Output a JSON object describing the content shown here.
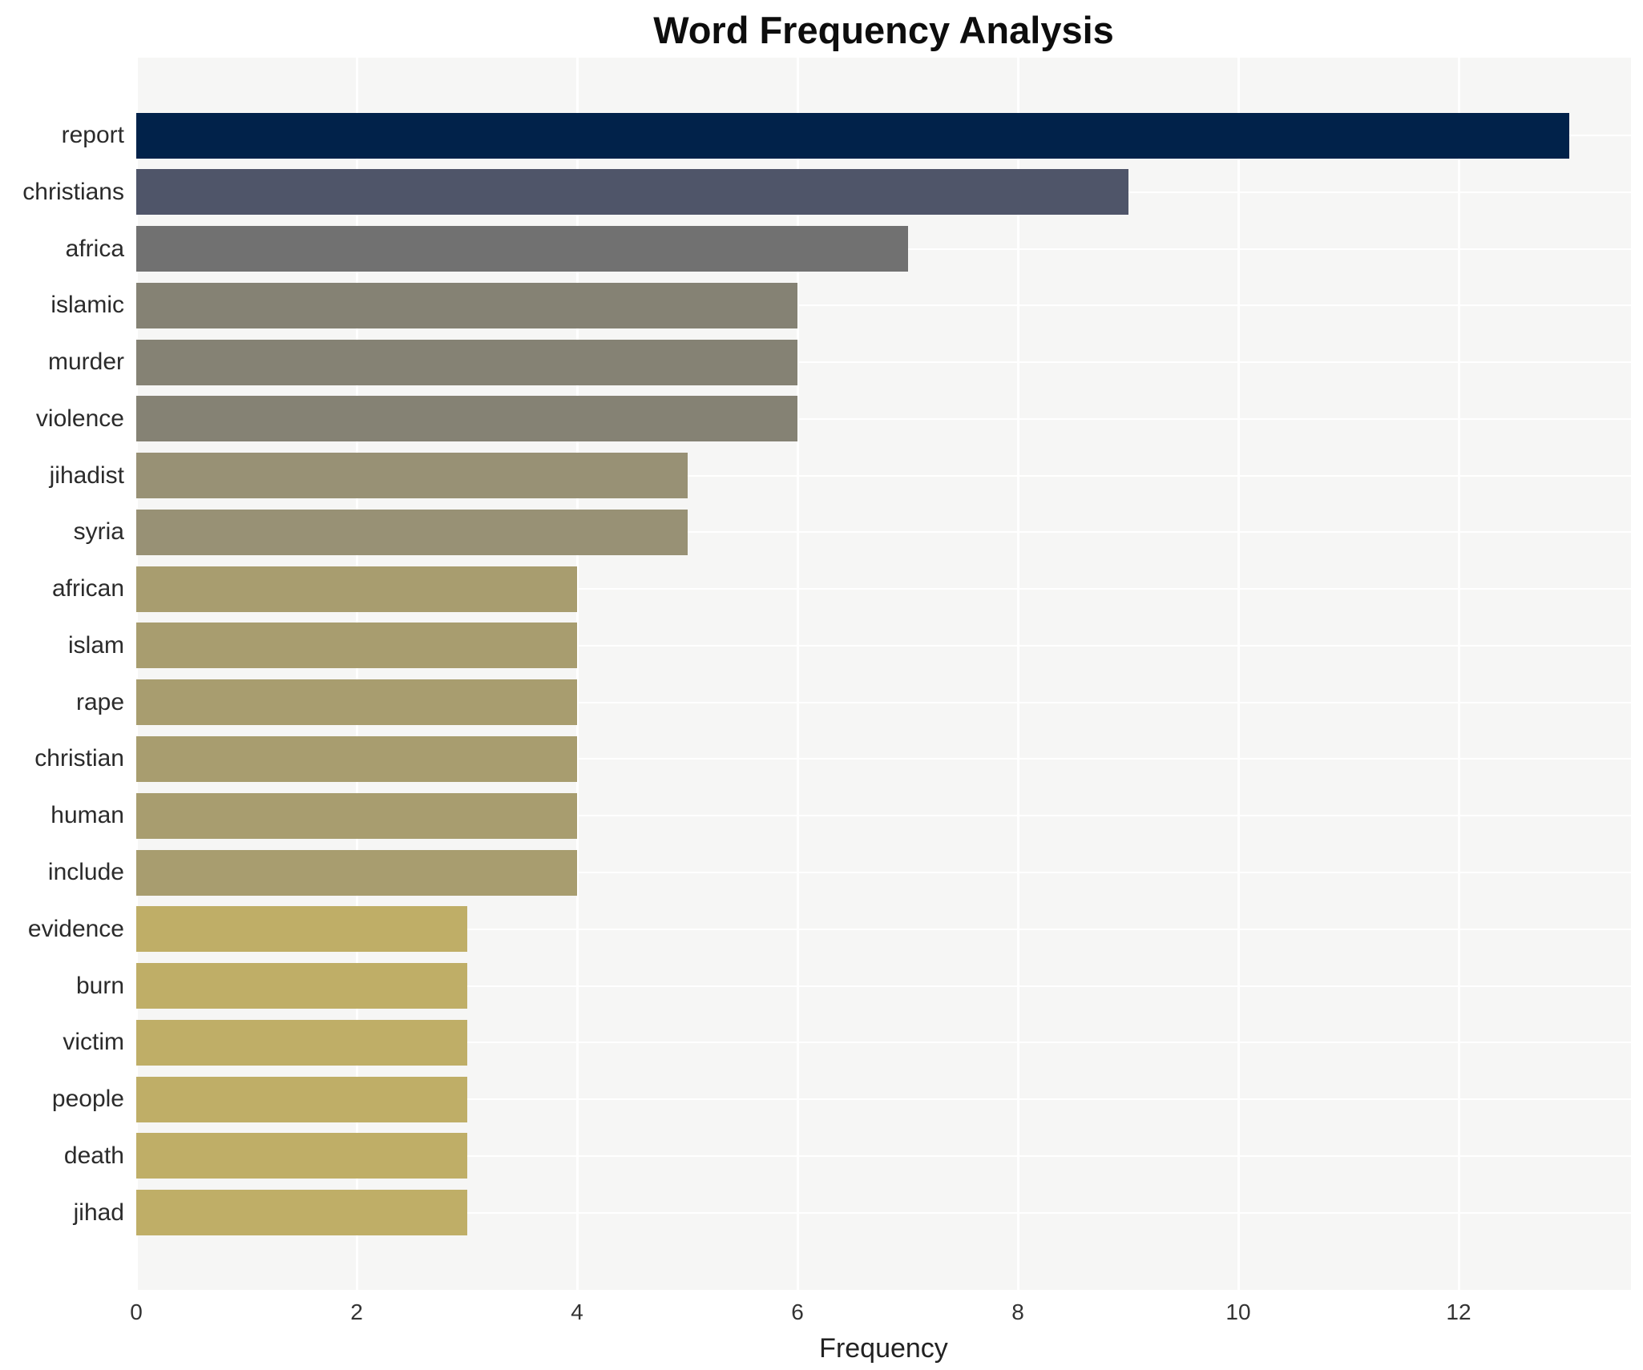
{
  "title": "Word Frequency Analysis",
  "xlabel": "Frequency",
  "chart_data": {
    "type": "bar",
    "orientation": "horizontal",
    "title": "Word Frequency Analysis",
    "xlabel": "Frequency",
    "ylabel": "",
    "xlim": [
      0,
      13.56
    ],
    "xticks": [
      0,
      2,
      4,
      6,
      8,
      10,
      12
    ],
    "grid": true,
    "legend": false,
    "plot_background": "#f6f6f5",
    "grid_color": "#ffffff",
    "categories": [
      "report",
      "christians",
      "africa",
      "islamic",
      "murder",
      "violence",
      "jihadist",
      "syria",
      "african",
      "islam",
      "rape",
      "christian",
      "human",
      "include",
      "evidence",
      "burn",
      "victim",
      "people",
      "death",
      "jihad"
    ],
    "values": [
      13,
      9,
      7,
      6,
      6,
      6,
      5,
      5,
      4,
      4,
      4,
      4,
      4,
      4,
      3,
      3,
      3,
      3,
      3,
      3
    ],
    "bar_colors": [
      "#01224a",
      "#4f5569",
      "#717171",
      "#858274",
      "#858274",
      "#858274",
      "#989175",
      "#989175",
      "#a89d6f",
      "#a89d6f",
      "#a89d6f",
      "#a89d6f",
      "#a89d6f",
      "#a89d6f",
      "#bfae67",
      "#bfae67",
      "#bfae67",
      "#bfae67",
      "#bfae67",
      "#bfae67"
    ]
  }
}
